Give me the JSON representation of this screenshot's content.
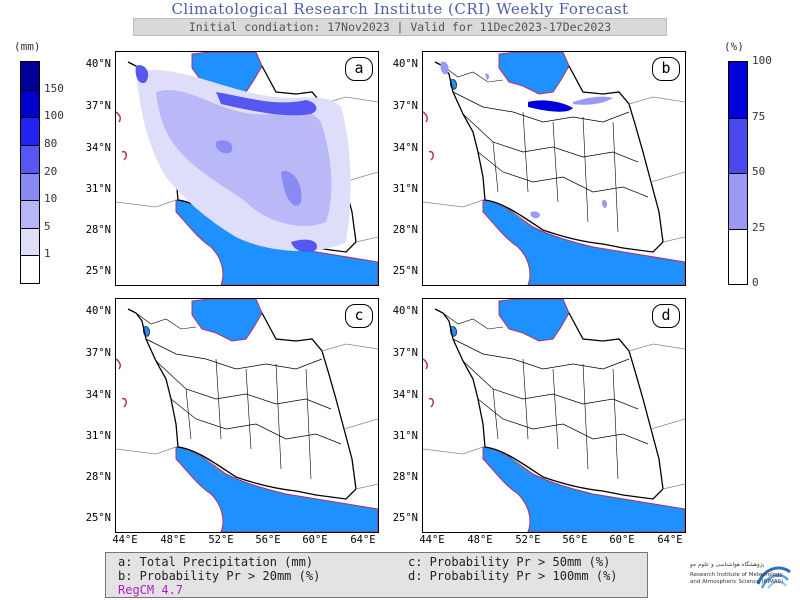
{
  "header": {
    "title": "Climatological Research Institute (CRI) Weekly Forecast",
    "subtitle": "Initial condiation: 17Nov2023 | Valid for 11Dec2023-17Dec2023"
  },
  "colorbar_left": {
    "unit": "(mm)",
    "labels": [
      "150",
      "100",
      "80",
      "20",
      "10",
      "5",
      "1"
    ],
    "colors": [
      "#000099",
      "#0000cc",
      "#2222ee",
      "#5656f0",
      "#8a8af4",
      "#b5b5f7",
      "#dedefb",
      "#ffffff"
    ]
  },
  "colorbar_right": {
    "unit": "(%)",
    "labels": [
      "100",
      "75",
      "50",
      "25",
      "0"
    ],
    "colors": [
      "#0000dd",
      "#4848ee",
      "#9a9af5",
      "#ffffff"
    ]
  },
  "panels": [
    {
      "id": "a",
      "label": "a"
    },
    {
      "id": "b",
      "label": "b"
    },
    {
      "id": "c",
      "label": "c"
    },
    {
      "id": "d",
      "label": "d"
    }
  ],
  "axes": {
    "lat_labels": [
      "40°N",
      "37°N",
      "34°N",
      "31°N",
      "28°N",
      "25°N"
    ],
    "lon_labels": [
      "44°E",
      "48°E",
      "52°E",
      "56°E",
      "60°E",
      "64°E"
    ]
  },
  "legend": {
    "a": "a: Total Precipitation (mm)",
    "b": "b: Probability Pr > 20mm (%)",
    "c": "c: Probability Pr > 50mm (%)",
    "d": "d: Probability Pr > 100mm (%)",
    "model": "RegCM 4.7"
  },
  "logo": {
    "line1": "پژوهشگاه هواشناسی و علوم جو",
    "line2": "Research Institute of Meteorology",
    "line3": "and Atmospheric Science (RIMAS)"
  },
  "colors": {
    "water": "#1e90ff",
    "coast": "#b0306a",
    "title": "#4b5ea8"
  }
}
